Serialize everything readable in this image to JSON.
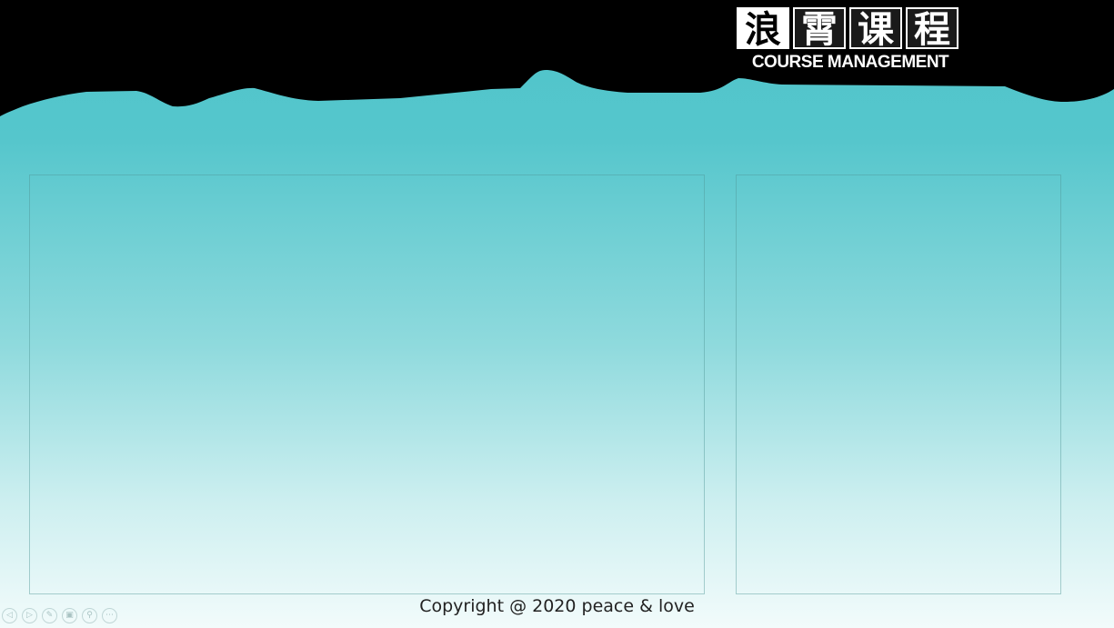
{
  "header": {
    "logo_chars": [
      "浪",
      "霄",
      "课",
      "程"
    ],
    "logo_subtitle": "COURSE MANAGEMENT"
  },
  "footer": {
    "copyright": "Copyright @ 2020 peace & love"
  },
  "controls": [
    {
      "icon": "prev-icon",
      "glyph": "◁"
    },
    {
      "icon": "play-icon",
      "glyph": "▷"
    },
    {
      "icon": "pen-icon",
      "glyph": "✎"
    },
    {
      "icon": "slides-icon",
      "glyph": "▣"
    },
    {
      "icon": "zoom-icon",
      "glyph": "⚲"
    },
    {
      "icon": "more-icon",
      "glyph": "⋯"
    }
  ],
  "colors": {
    "header": "#000000",
    "teal_top": "#4fc4ca",
    "teal_bottom": "#f2fbfb"
  }
}
